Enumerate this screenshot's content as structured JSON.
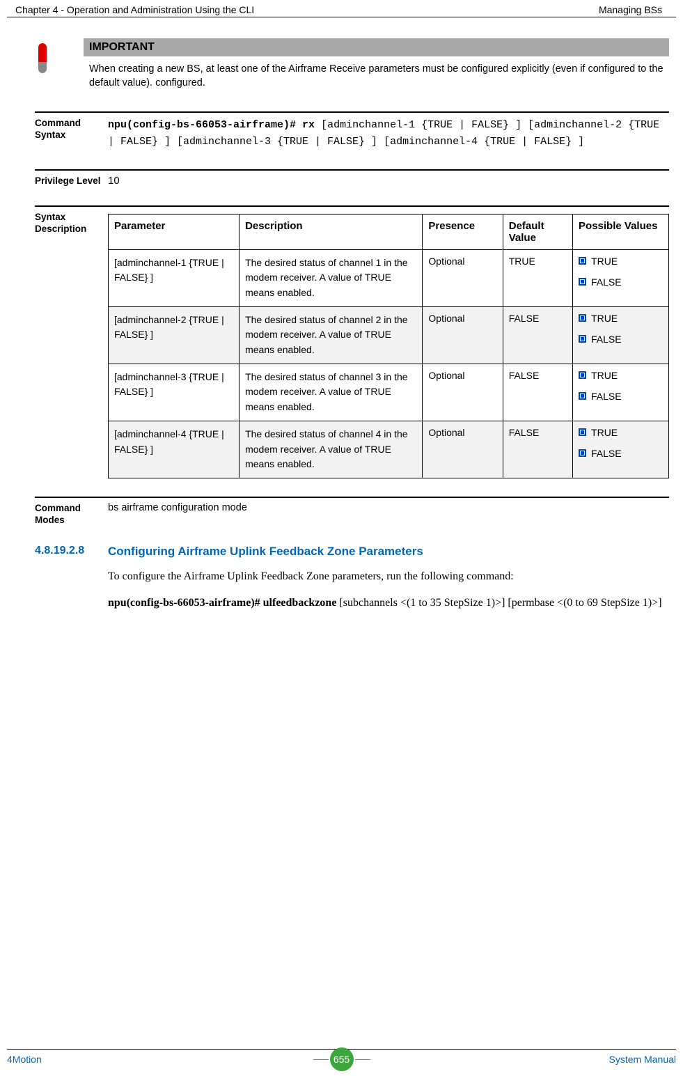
{
  "page_header": {
    "left": "Chapter 4 - Operation and Administration Using the CLI",
    "right": "Managing BSs"
  },
  "important": {
    "heading": "IMPORTANT",
    "text": "When creating a new BS, at least one of the Airframe Receive parameters must be configured explicitly (even if configured to the default value). configured."
  },
  "cmd_syntax": {
    "label": "Command Syntax",
    "bold": "npu(config-bs-66053-airframe)# rx",
    "rest1": " [adminchannel-1 {TRUE | FALSE} ] [adminchannel-2 {TRUE | FALSE} ] [adminchannel-3 {TRUE | FALSE} ] [adminchannel-4 {TRUE | FALSE} ]"
  },
  "privilege": {
    "label": "Privilege Level",
    "value": "10"
  },
  "syntax_desc": {
    "label": "Syntax Description",
    "headers": {
      "param": "Parameter",
      "desc": "Description",
      "pres": "Presence",
      "def": "Default Value",
      "poss": "Possible Values"
    },
    "rows": [
      {
        "param": "[adminchannel-1 {TRUE | FALSE} ]",
        "desc": "The desired status of channel 1 in the modem receiver. A value of TRUE means enabled.",
        "pres": "Optional",
        "def": "TRUE",
        "poss": [
          "TRUE",
          "FALSE"
        ],
        "alt": false
      },
      {
        "param": "[adminchannel-2 {TRUE | FALSE} ]",
        "desc": "The desired status of channel 2 in the modem receiver. A value of TRUE means enabled.",
        "pres": "Optional",
        "def": "FALSE",
        "poss": [
          "TRUE",
          "FALSE"
        ],
        "alt": true
      },
      {
        "param": "[adminchannel-3 {TRUE | FALSE} ]",
        "desc": "The desired status of channel 3 in the modem receiver. A value of TRUE means enabled.",
        "pres": "Optional",
        "def": "FALSE",
        "poss": [
          "TRUE",
          "FALSE"
        ],
        "alt": false
      },
      {
        "param": "[adminchannel-4 {TRUE | FALSE} ]",
        "desc": "The desired status of channel 4 in the modem receiver. A value of TRUE means enabled.",
        "pres": "Optional",
        "def": "FALSE",
        "poss": [
          "TRUE",
          "FALSE"
        ],
        "alt": true
      }
    ]
  },
  "cmd_modes": {
    "label": "Command Modes",
    "text": "bs airframe configuration mode"
  },
  "section": {
    "num": "4.8.19.2.8",
    "title": "Configuring Airframe Uplink Feedback Zone Parameters",
    "body": "To configure the Airframe Uplink Feedback Zone parameters, run the following command:",
    "cmd_bold": "npu(config-bs-66053-airframe)# ulfeedbackzone",
    "cmd_rest": " [subchannels <(1 to 35 StepSize 1)>] [permbase <(0 to 69 StepSize 1)>]"
  },
  "footer": {
    "left": "4Motion",
    "page": "655",
    "right": "System Manual"
  },
  "colors": {
    "link_blue": "#0066b3",
    "bullet_blue": "#0047ab",
    "badge_green": "#3ba63b",
    "header_gray": "#a9a9a9",
    "alt_gray": "#f2f2f2"
  }
}
